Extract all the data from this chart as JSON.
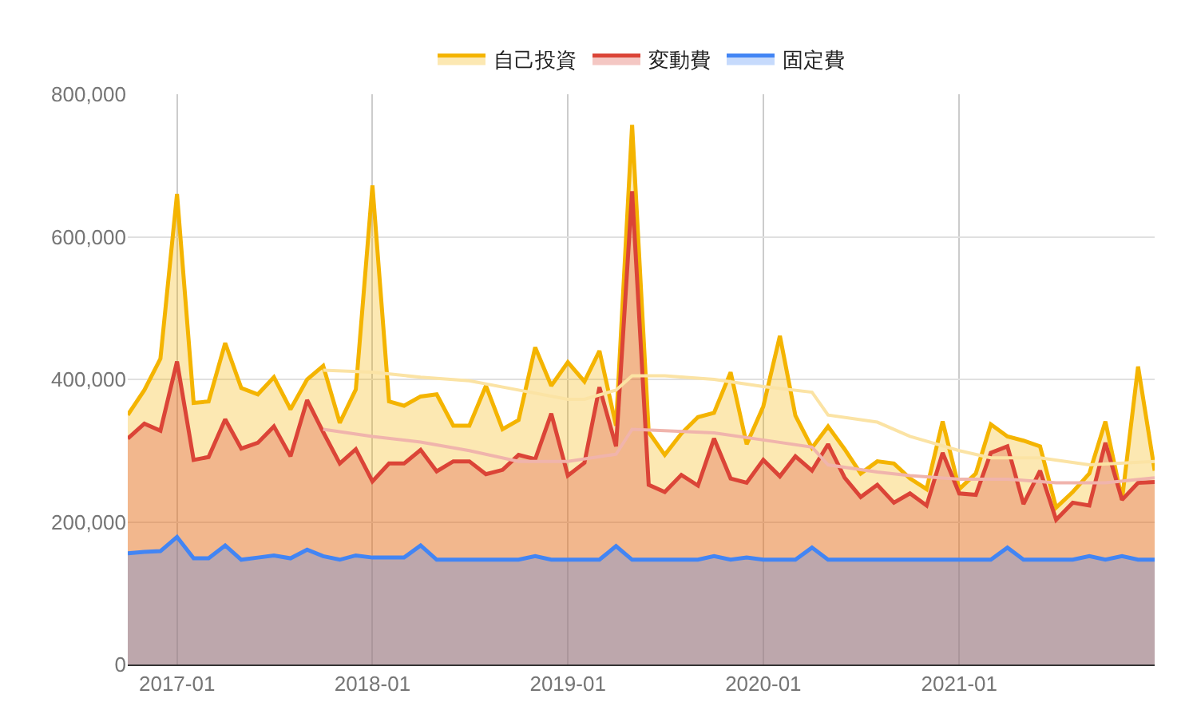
{
  "chart_data": {
    "type": "area",
    "x": [
      "2016-10",
      "2016-11",
      "2016-12",
      "2017-01",
      "2017-02",
      "2017-03",
      "2017-04",
      "2017-05",
      "2017-06",
      "2017-07",
      "2017-08",
      "2017-09",
      "2017-10",
      "2017-11",
      "2017-12",
      "2018-01",
      "2018-02",
      "2018-03",
      "2018-04",
      "2018-05",
      "2018-06",
      "2018-07",
      "2018-08",
      "2018-09",
      "2018-10",
      "2018-11",
      "2018-12",
      "2019-01",
      "2019-02",
      "2019-03",
      "2019-04",
      "2019-05",
      "2019-06",
      "2019-07",
      "2019-08",
      "2019-09",
      "2019-10",
      "2019-11",
      "2019-12",
      "2020-01",
      "2020-02",
      "2020-03",
      "2020-04",
      "2020-05",
      "2020-06",
      "2020-07",
      "2020-08",
      "2020-09",
      "2020-10",
      "2020-11",
      "2020-12",
      "2021-01",
      "2021-02",
      "2021-03",
      "2021-04",
      "2021-05",
      "2021-06",
      "2021-07",
      "2021-08",
      "2021-09",
      "2021-10",
      "2021-11",
      "2021-12",
      "2022-01"
    ],
    "series": [
      {
        "name": "自己投資",
        "color": "#f4b400",
        "values": [
          350000,
          385000,
          429000,
          660000,
          367000,
          369000,
          451000,
          388000,
          379000,
          403000,
          358000,
          400000,
          419000,
          339000,
          386000,
          672000,
          369000,
          363000,
          376000,
          379000,
          335000,
          335000,
          391000,
          330000,
          343000,
          445000,
          391000,
          424000,
          397000,
          440000,
          335000,
          757000,
          326000,
          294000,
          324000,
          347000,
          353000,
          410000,
          309000,
          362000,
          461000,
          349000,
          304000,
          334000,
          302000,
          268000,
          285000,
          282000,
          261000,
          246000,
          341000,
          246000,
          268000,
          337000,
          320000,
          314000,
          306000,
          220000,
          242000,
          268000,
          341000,
          231000,
          418000,
          272000
        ]
      },
      {
        "name": "変動費",
        "color": "#db4437",
        "values": [
          317000,
          338000,
          328000,
          425000,
          287000,
          291000,
          344000,
          303000,
          311000,
          334000,
          292000,
          371000,
          326000,
          282000,
          302000,
          257000,
          282000,
          282000,
          301000,
          271000,
          285000,
          285000,
          267000,
          273000,
          294000,
          288000,
          352000,
          265000,
          283000,
          389000,
          306000,
          664000,
          252000,
          242000,
          266000,
          251000,
          317000,
          261000,
          255000,
          287000,
          264000,
          292000,
          272000,
          309000,
          262000,
          235000,
          252000,
          227000,
          240000,
          223000,
          297000,
          240000,
          238000,
          297000,
          306000,
          225000,
          272000,
          203000,
          227000,
          223000,
          311000,
          231000,
          255000,
          256000
        ]
      },
      {
        "type": "line",
        "color": "#fbe3a4",
        "x": [
          "2017-10",
          "2018-01",
          "2018-04",
          "2018-07",
          "2018-10",
          "2019-01",
          "2019-02",
          "2019-04",
          "2019-05",
          "2019-07",
          "2019-10",
          "2020-01",
          "2020-04",
          "2020-05",
          "2020-08",
          "2020-10",
          "2021-01",
          "2021-03",
          "2021-06",
          "2021-09",
          "2022-01"
        ],
        "values": [
          413000,
          410000,
          403000,
          398000,
          385000,
          372000,
          372000,
          385000,
          405000,
          405000,
          400000,
          390000,
          382000,
          350000,
          340000,
          320000,
          300000,
          290000,
          290000,
          280000,
          285000
        ]
      },
      {
        "type": "line",
        "color": "#f0b4ac",
        "x": [
          "2017-10",
          "2018-01",
          "2018-04",
          "2018-07",
          "2018-10",
          "2019-01",
          "2019-04",
          "2019-05",
          "2019-07",
          "2019-10",
          "2020-01",
          "2020-04",
          "2020-05",
          "2020-08",
          "2020-10",
          "2021-01",
          "2021-04",
          "2021-07",
          "2021-10",
          "2022-01"
        ],
        "values": [
          330000,
          320000,
          312000,
          300000,
          285000,
          285000,
          295000,
          330000,
          328000,
          325000,
          315000,
          305000,
          280000,
          270000,
          265000,
          260000,
          260000,
          255000,
          255000,
          262000
        ]
      },
      {
        "name": "固定費",
        "color": "#4285f4",
        "values": [
          156000,
          158000,
          159000,
          179000,
          149000,
          149000,
          167000,
          147000,
          150000,
          153000,
          149000,
          161000,
          152000,
          147000,
          153000,
          150000,
          150000,
          150000,
          167000,
          147000,
          147000,
          147000,
          147000,
          147000,
          147000,
          152000,
          147000,
          147000,
          147000,
          147000,
          166000,
          147000,
          147000,
          147000,
          147000,
          147000,
          152000,
          147000,
          150000,
          147000,
          147000,
          147000,
          164000,
          147000,
          147000,
          147000,
          147000,
          147000,
          147000,
          147000,
          147000,
          147000,
          147000,
          147000,
          164000,
          147000,
          147000,
          147000,
          147000,
          152000,
          147000,
          152000,
          147000,
          147000
        ]
      }
    ],
    "xlim": [
      "2016-10",
      "2022-01"
    ],
    "xticks": [
      "2017-01",
      "2018-01",
      "2019-01",
      "2020-01",
      "2021-01"
    ],
    "ylim": [
      0,
      800000
    ],
    "yticks": [
      {
        "value": 0,
        "label": "0"
      },
      {
        "value": 200000,
        "label": "200,000"
      },
      {
        "value": 400000,
        "label": "400,000"
      },
      {
        "value": 600000,
        "label": "600,000"
      },
      {
        "value": 800000,
        "label": "800,000"
      }
    ],
    "grid": true,
    "legend": "top"
  }
}
